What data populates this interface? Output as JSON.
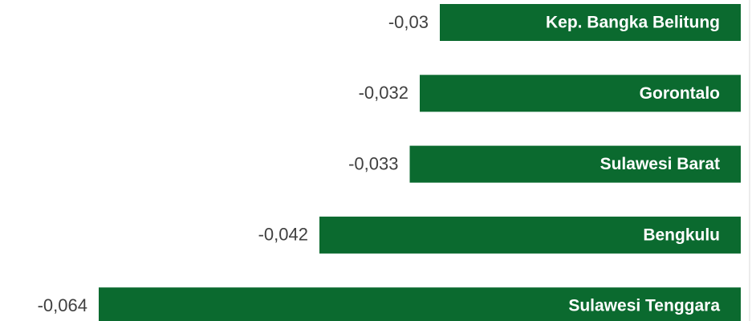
{
  "chart_data": {
    "type": "bar",
    "orientation": "horizontal",
    "categories": [
      "Kep. Bangka Belitung",
      "Gorontalo",
      "Sulawesi Barat",
      "Bengkulu",
      "Sulawesi Tenggara"
    ],
    "values": [
      -0.03,
      -0.032,
      -0.033,
      -0.042,
      -0.064
    ],
    "value_labels": [
      "-0,03",
      "-0,032",
      "-0,033",
      "-0,042",
      "-0,064"
    ],
    "color": "#0b6a2f"
  }
}
